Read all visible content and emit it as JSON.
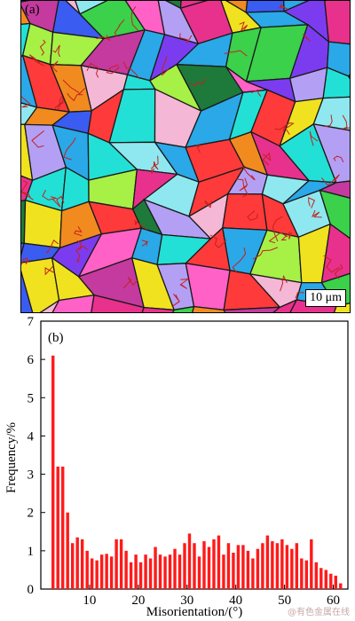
{
  "panel_a": {
    "label": "(a)",
    "scale_bar": "10 μm",
    "grain_colors": [
      "#e8318c",
      "#2aa8e8",
      "#3bd14a",
      "#f0e21f",
      "#f28b1f",
      "#7b3cf0",
      "#ff3a3a",
      "#23e0d6",
      "#a7f046",
      "#3b5cf0",
      "#ff61c7",
      "#b3a0f5",
      "#8fe8f0",
      "#f5b7d6",
      "#1e7a3a",
      "#c43a9e"
    ],
    "boundary_color": "#c42121"
  },
  "chart_data": {
    "type": "bar",
    "label": "(b)",
    "xlabel": "Misorientation/(°)",
    "ylabel": "Frequency/%",
    "xlim": [
      0,
      63
    ],
    "ylim": [
      0,
      7
    ],
    "xticks": [
      10,
      20,
      30,
      40,
      50,
      60
    ],
    "yticks": [
      0,
      1,
      2,
      3,
      4,
      5,
      6,
      7
    ],
    "bar_color": "#ff1a1a",
    "x": [
      2.5,
      3.5,
      4.5,
      5.5,
      6.5,
      7.5,
      8.5,
      9.5,
      10.5,
      11.5,
      12.5,
      13.5,
      14.5,
      15.5,
      16.5,
      17.5,
      18.5,
      19.5,
      20.5,
      21.5,
      22.5,
      23.5,
      24.5,
      25.5,
      26.5,
      27.5,
      28.5,
      29.5,
      30.5,
      31.5,
      32.5,
      33.5,
      34.5,
      35.5,
      36.5,
      37.5,
      38.5,
      39.5,
      40.5,
      41.5,
      42.5,
      43.5,
      44.5,
      45.5,
      46.5,
      47.5,
      48.5,
      49.5,
      50.5,
      51.5,
      52.5,
      53.5,
      54.5,
      55.5,
      56.5,
      57.5,
      58.5,
      59.5,
      60.5,
      61.5
    ],
    "values": [
      6.1,
      3.2,
      3.2,
      2.0,
      1.2,
      1.35,
      1.3,
      1.0,
      0.8,
      0.75,
      0.9,
      0.92,
      0.85,
      1.3,
      1.3,
      1.0,
      0.7,
      0.9,
      0.7,
      0.9,
      0.8,
      1.1,
      0.9,
      0.85,
      0.9,
      1.05,
      0.9,
      1.2,
      1.45,
      1.2,
      0.85,
      1.25,
      1.1,
      1.3,
      1.4,
      0.9,
      1.2,
      0.95,
      1.15,
      1.15,
      1.0,
      0.8,
      1.05,
      1.2,
      1.4,
      1.25,
      1.2,
      1.3,
      1.15,
      1.05,
      1.2,
      0.8,
      0.75,
      1.3,
      0.7,
      0.55,
      0.5,
      0.4,
      0.35,
      0.15
    ]
  },
  "watermark": "@有色金属在线"
}
